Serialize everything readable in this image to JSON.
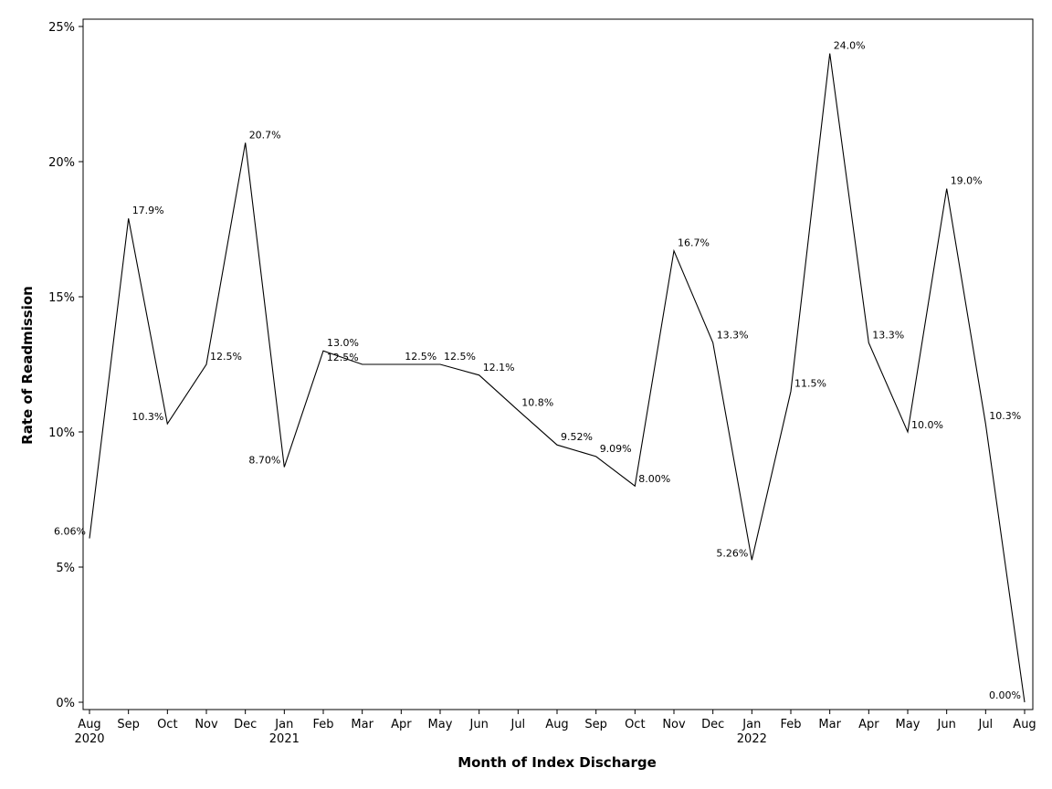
{
  "chart_data": {
    "type": "line",
    "title": "",
    "xlabel": "Month of Index Discharge",
    "ylabel": "Rate of Readmission",
    "ylim": [
      0,
      25
    ],
    "yticks": [
      {
        "value": 0,
        "label": "0%"
      },
      {
        "value": 5,
        "label": "5%"
      },
      {
        "value": 10,
        "label": "10%"
      },
      {
        "value": 15,
        "label": "15%"
      },
      {
        "value": 20,
        "label": "20%"
      },
      {
        "value": 25,
        "label": "25%"
      }
    ],
    "grid": false,
    "legend": "none",
    "categories": [
      {
        "month": "Aug",
        "year": "2020"
      },
      {
        "month": "Sep",
        "year": ""
      },
      {
        "month": "Oct",
        "year": ""
      },
      {
        "month": "Nov",
        "year": ""
      },
      {
        "month": "Dec",
        "year": ""
      },
      {
        "month": "Jan",
        "year": "2021"
      },
      {
        "month": "Feb",
        "year": ""
      },
      {
        "month": "Mar",
        "year": ""
      },
      {
        "month": "Apr",
        "year": ""
      },
      {
        "month": "May",
        "year": ""
      },
      {
        "month": "Jun",
        "year": ""
      },
      {
        "month": "Jul",
        "year": ""
      },
      {
        "month": "Aug",
        "year": ""
      },
      {
        "month": "Sep",
        "year": ""
      },
      {
        "month": "Oct",
        "year": ""
      },
      {
        "month": "Nov",
        "year": ""
      },
      {
        "month": "Dec",
        "year": ""
      },
      {
        "month": "Jan",
        "year": "2022"
      },
      {
        "month": "Feb",
        "year": ""
      },
      {
        "month": "Mar",
        "year": ""
      },
      {
        "month": "Apr",
        "year": ""
      },
      {
        "month": "May",
        "year": ""
      },
      {
        "month": "Jun",
        "year": ""
      },
      {
        "month": "Jul",
        "year": ""
      },
      {
        "month": "Aug",
        "year": ""
      }
    ],
    "series": [
      {
        "name": "Rate of Readmission",
        "color": "#000000",
        "values": [
          6.06,
          17.9,
          10.3,
          12.5,
          20.7,
          8.7,
          13.0,
          12.5,
          12.5,
          12.5,
          12.1,
          10.8,
          9.52,
          9.09,
          8.0,
          16.7,
          13.3,
          5.26,
          11.5,
          24.0,
          13.3,
          10.0,
          19.0,
          10.3,
          0.0
        ],
        "labels": [
          "6.06%",
          "17.9%",
          "10.3%",
          "12.5%",
          "20.7%",
          "8.70%",
          "13.0%",
          "12.5%",
          "12.5%",
          "12.5%",
          "12.1%",
          "10.8%",
          "9.52%",
          "9.09%",
          "8.00%",
          "16.7%",
          "13.3%",
          "5.26%",
          "11.5%",
          "24.0%",
          "13.3%",
          "10.0%",
          "19.0%",
          "10.3%",
          "0.00%"
        ]
      }
    ]
  }
}
